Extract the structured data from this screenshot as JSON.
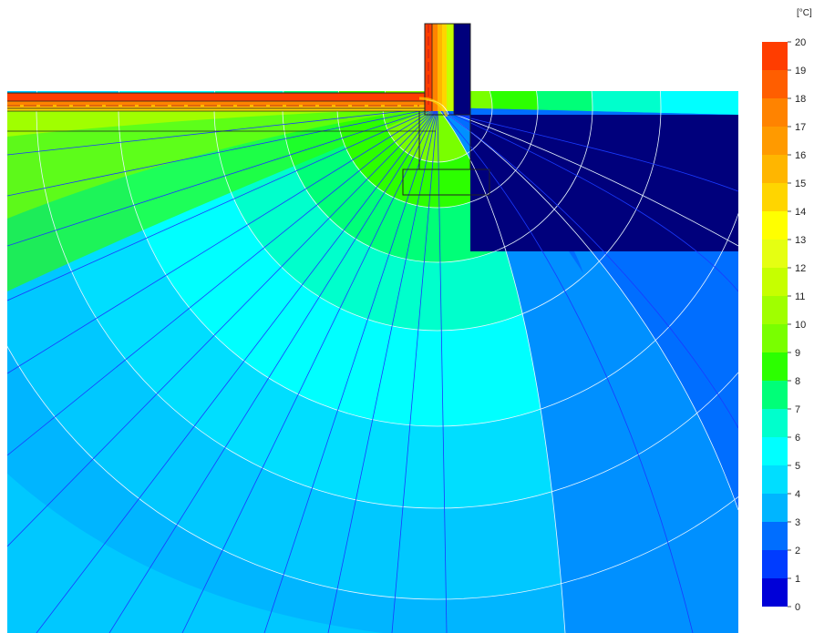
{
  "legend": {
    "unit": "[°C]",
    "labels": [
      "20",
      "19",
      "18",
      "17",
      "16",
      "15",
      "14",
      "13",
      "12",
      "11",
      "10",
      "9",
      "8",
      "7",
      "6",
      "5",
      "4",
      "3",
      "2",
      "1",
      "0"
    ],
    "colors": [
      "#ff3d00",
      "#ff5e00",
      "#ff8300",
      "#ff9a00",
      "#ffb600",
      "#ffd500",
      "#ffff00",
      "#e5ff12",
      "#c6ff00",
      "#a0ff00",
      "#79ff00",
      "#2cff00",
      "#00ff78",
      "#00ffcc",
      "#00ffff",
      "#00deff",
      "#00b5ff",
      "#006eff",
      "#003cff",
      "#0000d8"
    ]
  },
  "thermal_map": {
    "interior_color": "#ff3d00",
    "exterior_color": "#00007c"
  }
}
